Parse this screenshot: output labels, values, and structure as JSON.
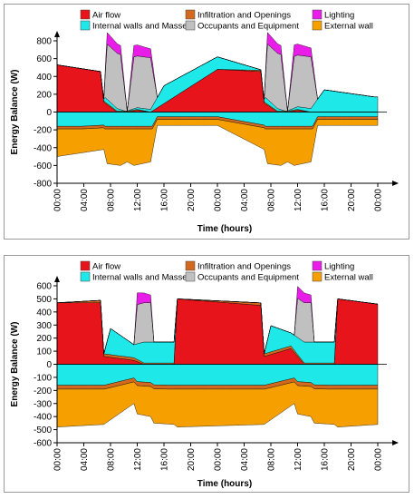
{
  "legend_colors": {
    "Air flow": "#e8141c",
    "Infiltration and Openings": "#d2691e",
    "Lighting": "#e81ee8",
    "Internal walls and Masses": "#1ee8e8",
    "Occupants and Equipment": "#c0c0c0",
    "External wall": "#f5a000"
  },
  "chart_data": [
    {
      "type": "area",
      "xlabel": "Time (hours)",
      "ylabel": "Energy Balance (W)",
      "xlim": [
        0,
        48
      ],
      "ylim": [
        -800,
        800
      ],
      "yticks": [
        -800,
        -600,
        -400,
        -200,
        0,
        200,
        400,
        600,
        800
      ],
      "xticks": [
        "00:00",
        "04:00",
        "08:00",
        "12:00",
        "16:00",
        "20:00",
        "00:00",
        "04:00",
        "08:00",
        "12:00",
        "16:00",
        "20:00",
        "00:00"
      ],
      "legend_position": "top",
      "legend": [
        "Air flow",
        "Infiltration and Openings",
        "Lighting",
        "Internal walls and Masses",
        "Occupants and Equipment",
        "External wall"
      ],
      "grid": false,
      "series": [
        {
          "name": "Air flow",
          "x": [
            0,
            6.5,
            7.0,
            9.0,
            10.5,
            12.0,
            14.0,
            24.0,
            30.5,
            31.0,
            33.0,
            34.5,
            36.0,
            38.0,
            48.0
          ],
          "values": [
            530,
            455,
            110,
            0,
            0,
            20,
            0,
            480,
            455,
            100,
            0,
            0,
            20,
            0,
            0
          ]
        },
        {
          "name": "Infiltration and Openings",
          "x": [
            0,
            6.5,
            7.0,
            9.0,
            12.0,
            14.0,
            24.0,
            31.0,
            33.0,
            36.0,
            38.0,
            48.0
          ],
          "values": [
            0,
            0,
            15,
            10,
            10,
            0,
            0,
            15,
            10,
            10,
            0,
            0
          ]
        },
        {
          "name": "Internal walls and Masses",
          "x": [
            0,
            6.8,
            7.2,
            9.0,
            10.2,
            12.0,
            14.0,
            16.0,
            24.0,
            30.8,
            31.2,
            33.0,
            34.2,
            36.0,
            38.0,
            40.0,
            47.5
          ],
          "values": [
            0,
            0,
            50,
            30,
            0,
            20,
            30,
            200,
            140,
            0,
            60,
            30,
            0,
            30,
            40,
            250,
            170
          ]
        },
        {
          "name": "Occupants and Equipment",
          "x": [
            0,
            7.0,
            7.5,
            9.5,
            10.5,
            11.5,
            14.0,
            15.0,
            24.0,
            31.0,
            31.5,
            33.5,
            34.5,
            35.5,
            38.0,
            39.0,
            48.0
          ],
          "values": [
            0,
            0,
            620,
            620,
            0,
            580,
            580,
            0,
            0,
            0,
            620,
            620,
            0,
            580,
            580,
            0,
            0
          ]
        },
        {
          "name": "Lighting",
          "x": [
            0,
            7.0,
            7.5,
            9.5,
            10.5,
            11.5,
            14.0,
            15.0,
            24.0,
            31.0,
            31.5,
            33.5,
            34.5,
            35.5,
            38.0,
            39.0,
            48.0
          ],
          "values": [
            0,
            0,
            130,
            100,
            0,
            130,
            100,
            0,
            0,
            0,
            130,
            100,
            0,
            130,
            100,
            0,
            0
          ]
        },
        {
          "name": "External wall",
          "x": [
            0,
            7.0,
            7.5,
            9.5,
            10.5,
            11.5,
            14.0,
            15.0,
            24.0,
            31.0,
            31.5,
            33.5,
            34.5,
            35.5,
            38.0,
            39.0,
            47.5
          ],
          "values": [
            -500,
            -420,
            -580,
            -600,
            -560,
            -600,
            -560,
            -150,
            -150,
            -420,
            -580,
            -600,
            -560,
            -600,
            -560,
            -150,
            -150
          ]
        }
      ]
    },
    {
      "type": "area",
      "xlabel": "Time (hours)",
      "ylabel": "Energy Balance (W)",
      "xlim": [
        0,
        48
      ],
      "ylim": [
        -600,
        600
      ],
      "yticks": [
        -600,
        -500,
        -400,
        -300,
        -200,
        -100,
        0,
        100,
        200,
        300,
        400,
        500,
        600
      ],
      "xticks": [
        "00:00",
        "04:00",
        "08:00",
        "12:00",
        "16:00",
        "20:00",
        "00:00",
        "04:00",
        "08:00",
        "12:00",
        "16:00",
        "20:00",
        "00:00"
      ],
      "legend_position": "top",
      "legend": [
        "Air flow",
        "Infiltration and Openings",
        "Lighting",
        "Internal walls and Masses",
        "Occupants and Equipment",
        "External wall"
      ],
      "grid": false,
      "series": [
        {
          "name": "Air flow",
          "x": [
            0,
            6.5,
            7.0,
            11.5,
            13.0,
            17.5,
            18.0,
            30.5,
            31.0,
            35.0,
            37.0,
            41.5,
            42.0,
            48.0
          ],
          "values": [
            470,
            470,
            60,
            30,
            0,
            0,
            500,
            450,
            60,
            120,
            0,
            0,
            500,
            460
          ]
        },
        {
          "name": "Infiltration and Openings",
          "x": [
            0,
            7.0,
            11.5,
            13.0,
            17.5,
            18.0,
            31.0,
            35.0,
            37.0,
            41.5,
            42.0,
            48.0
          ],
          "values": [
            0,
            20,
            20,
            10,
            10,
            0,
            20,
            20,
            10,
            10,
            0,
            0
          ]
        },
        {
          "name": "Internal walls and Masses",
          "x": [
            0,
            7.0,
            8.0,
            11.5,
            13.0,
            17.5,
            18.0,
            31.0,
            32.0,
            35.0,
            37.0,
            41.5,
            42.0,
            48.0
          ],
          "values": [
            0,
            0,
            200,
            100,
            160,
            160,
            0,
            0,
            200,
            100,
            160,
            160,
            0,
            0
          ]
        },
        {
          "name": "Occupants and Equipment",
          "x": [
            0,
            11.5,
            12.0,
            14.0,
            14.5,
            35.5,
            36.0,
            38.0,
            38.5,
            48.0
          ],
          "values": [
            0,
            0,
            300,
            300,
            0,
            0,
            300,
            300,
            0,
            0
          ]
        },
        {
          "name": "Lighting",
          "x": [
            0,
            11.5,
            12.0,
            14.0,
            14.5,
            35.5,
            36.0,
            38.0,
            38.5,
            48.0
          ],
          "values": [
            0,
            0,
            90,
            60,
            0,
            0,
            90,
            60,
            0,
            0
          ]
        },
        {
          "name": "External wall",
          "x": [
            0,
            7.0,
            11.5,
            12.0,
            14.0,
            14.5,
            17.5,
            18.0,
            31.0,
            35.5,
            36.0,
            38.0,
            38.5,
            41.5,
            42.0,
            48.0
          ],
          "values": [
            -480,
            -460,
            -300,
            -380,
            -400,
            -450,
            -460,
            -480,
            -460,
            -300,
            -380,
            -400,
            -450,
            -460,
            -480,
            -460
          ]
        }
      ]
    }
  ]
}
